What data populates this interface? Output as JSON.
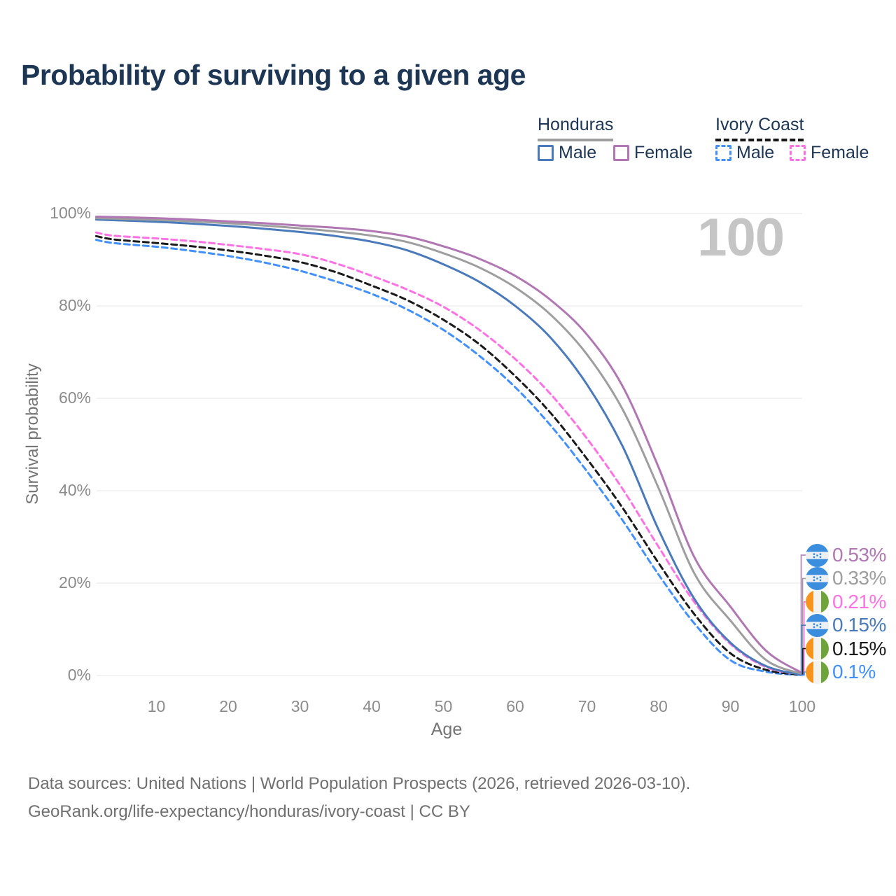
{
  "title": "Probability of surviving to a given age",
  "legend": {
    "honduras": {
      "name": "Honduras",
      "male": "Male",
      "female": "Female"
    },
    "ivory_coast": {
      "name": "Ivory Coast",
      "male": "Male",
      "female": "Female"
    }
  },
  "age_counter": "100",
  "y_axis": {
    "label": "Survival probability",
    "ticks": [
      "100%",
      "80%",
      "60%",
      "40%",
      "20%",
      "0%"
    ],
    "tick_values": [
      100,
      80,
      60,
      40,
      20,
      0
    ]
  },
  "x_axis": {
    "label": "Age",
    "ticks": [
      "10",
      "20",
      "30",
      "40",
      "50",
      "60",
      "70",
      "80",
      "90",
      "100"
    ],
    "tick_values": [
      10,
      20,
      30,
      40,
      50,
      60,
      70,
      80,
      90,
      100
    ]
  },
  "right_labels": [
    {
      "value": "0.53%",
      "series": "Honduras Female",
      "flag": "honduras",
      "color": "#b077b3",
      "end_value": 0.53
    },
    {
      "value": "0.33%",
      "series": "Honduras",
      "flag": "honduras",
      "color": "#9e9e9e",
      "end_value": 0.33
    },
    {
      "value": "0.21%",
      "series": "Ivory Coast Female",
      "flag": "ivory-coast",
      "color": "#ff72e3",
      "end_value": 0.21
    },
    {
      "value": "0.15%",
      "series": "Honduras Male",
      "flag": "honduras",
      "color": "#4a7ab9",
      "end_value": 0.15
    },
    {
      "value": "0.15%",
      "series": "Ivory Coast",
      "flag": "ivory-coast",
      "color": "#1a1a1a",
      "end_value": 0.15
    },
    {
      "value": "0.1%",
      "series": "Ivory Coast Male",
      "flag": "ivory-coast",
      "color": "#4290fe",
      "end_value": 0.1
    }
  ],
  "footer": {
    "line1": "Data sources: United Nations | World Population Prospects (2026, retrieved 2026-03-10).",
    "line2": "GeoRank.org/life-expectancy/honduras/ivory-coast | CC BY"
  },
  "colors": {
    "honduras_male": "#4a7ab9",
    "honduras_female": "#b077b3",
    "honduras_both": "#9e9e9e",
    "ivory_coast_male": "#4290fe",
    "ivory_coast_female": "#ff72e3",
    "ivory_coast_both": "#1a1a1a",
    "grid": "#eaeaea",
    "title_text": "#1c3654",
    "axis_text": "#8b8b8b",
    "big_number": "#c5c5c5"
  },
  "chart_data": {
    "type": "line",
    "title": "Probability of surviving to a given age",
    "xlabel": "Age",
    "ylabel": "Survival probability",
    "xlim": [
      0,
      100
    ],
    "ylim": [
      0,
      100
    ],
    "grid": "horizontal",
    "legend_position": "top-right",
    "series": [
      {
        "name": "Ivory Coast Male",
        "group": "Ivory Coast",
        "sex": "Male",
        "color": "#4290fe",
        "dash": true,
        "end_label": "0.1%",
        "points": [
          [
            1.6,
            94.3
          ],
          [
            4,
            93.6
          ],
          [
            10,
            92.8
          ],
          [
            15,
            91.9
          ],
          [
            20,
            90.8
          ],
          [
            25,
            89.4
          ],
          [
            30,
            87.6
          ],
          [
            35,
            85.3
          ],
          [
            40,
            82.6
          ],
          [
            45,
            79.2
          ],
          [
            50,
            74.8
          ],
          [
            55,
            69.2
          ],
          [
            60,
            62.4
          ],
          [
            65,
            54.0
          ],
          [
            70,
            44.2
          ],
          [
            75,
            33.5
          ],
          [
            80,
            21.8
          ],
          [
            85,
            11.2
          ],
          [
            90,
            3.3
          ],
          [
            95,
            0.8
          ],
          [
            100,
            0.1
          ]
        ]
      },
      {
        "name": "Ivory Coast",
        "group": "Ivory Coast",
        "sex": "Both",
        "color": "#1a1a1a",
        "dash": true,
        "end_label": "0.15%",
        "points": [
          [
            1.6,
            95.1
          ],
          [
            4,
            94.4
          ],
          [
            10,
            93.6
          ],
          [
            15,
            92.9
          ],
          [
            20,
            92.0
          ],
          [
            25,
            90.9
          ],
          [
            30,
            89.5
          ],
          [
            35,
            87.3
          ],
          [
            40,
            84.4
          ],
          [
            45,
            81.2
          ],
          [
            50,
            77.0
          ],
          [
            55,
            71.7
          ],
          [
            60,
            64.8
          ],
          [
            65,
            56.7
          ],
          [
            70,
            46.9
          ],
          [
            75,
            36.2
          ],
          [
            80,
            24.3
          ],
          [
            85,
            13.2
          ],
          [
            90,
            4.8
          ],
          [
            95,
            1.2
          ],
          [
            100,
            0.15
          ]
        ]
      },
      {
        "name": "Ivory Coast Female",
        "group": "Ivory Coast",
        "sex": "Female",
        "color": "#ff72e3",
        "dash": true,
        "end_label": "0.21%",
        "points": [
          [
            1.6,
            95.9
          ],
          [
            4,
            95.2
          ],
          [
            10,
            94.6
          ],
          [
            15,
            94.0
          ],
          [
            20,
            93.2
          ],
          [
            25,
            92.3
          ],
          [
            30,
            91.2
          ],
          [
            35,
            89.2
          ],
          [
            40,
            86.5
          ],
          [
            45,
            83.5
          ],
          [
            50,
            79.8
          ],
          [
            55,
            74.8
          ],
          [
            60,
            68.5
          ],
          [
            65,
            60.8
          ],
          [
            70,
            51.3
          ],
          [
            75,
            40.3
          ],
          [
            80,
            27.8
          ],
          [
            85,
            15.8
          ],
          [
            90,
            6.8
          ],
          [
            95,
            1.8
          ],
          [
            100,
            0.21
          ]
        ]
      },
      {
        "name": "Honduras Male",
        "group": "Honduras",
        "sex": "Male",
        "color": "#4a7ab9",
        "dash": false,
        "end_label": "0.15%",
        "points": [
          [
            1.6,
            98.7
          ],
          [
            5,
            98.5
          ],
          [
            10,
            98.2
          ],
          [
            15,
            97.8
          ],
          [
            20,
            97.3
          ],
          [
            25,
            96.7
          ],
          [
            30,
            96.0
          ],
          [
            35,
            95.1
          ],
          [
            40,
            93.9
          ],
          [
            45,
            92.0
          ],
          [
            50,
            89.0
          ],
          [
            55,
            85.2
          ],
          [
            60,
            80.0
          ],
          [
            65,
            73.0
          ],
          [
            70,
            63.0
          ],
          [
            75,
            49.5
          ],
          [
            80,
            31.5
          ],
          [
            85,
            16.5
          ],
          [
            90,
            7.1
          ],
          [
            95,
            2.0
          ],
          [
            100,
            0.15
          ]
        ]
      },
      {
        "name": "Honduras",
        "group": "Honduras",
        "sex": "Both",
        "color": "#9e9e9e",
        "dash": false,
        "end_label": "0.33%",
        "points": [
          [
            1.6,
            99.0
          ],
          [
            5,
            98.85
          ],
          [
            10,
            98.6
          ],
          [
            15,
            98.3
          ],
          [
            20,
            97.9
          ],
          [
            25,
            97.4
          ],
          [
            30,
            96.8
          ],
          [
            35,
            96.1
          ],
          [
            40,
            95.2
          ],
          [
            45,
            93.8
          ],
          [
            50,
            91.4
          ],
          [
            55,
            88.3
          ],
          [
            60,
            84.0
          ],
          [
            65,
            78.0
          ],
          [
            70,
            69.5
          ],
          [
            75,
            57.5
          ],
          [
            80,
            40.5
          ],
          [
            85,
            22.0
          ],
          [
            90,
            11.9
          ],
          [
            95,
            3.3
          ],
          [
            100,
            0.33
          ]
        ]
      },
      {
        "name": "Honduras Female",
        "group": "Honduras",
        "sex": "Female",
        "color": "#b077b3",
        "dash": false,
        "end_label": "0.53%",
        "points": [
          [
            1.6,
            99.3
          ],
          [
            5,
            99.2
          ],
          [
            10,
            99.0
          ],
          [
            15,
            98.7
          ],
          [
            20,
            98.3
          ],
          [
            25,
            97.9
          ],
          [
            30,
            97.4
          ],
          [
            35,
            96.9
          ],
          [
            40,
            96.2
          ],
          [
            45,
            95.0
          ],
          [
            50,
            92.9
          ],
          [
            55,
            90.2
          ],
          [
            60,
            86.5
          ],
          [
            65,
            81.2
          ],
          [
            70,
            73.8
          ],
          [
            75,
            62.5
          ],
          [
            80,
            45.0
          ],
          [
            85,
            25.5
          ],
          [
            90,
            14.9
          ],
          [
            95,
            5.3
          ],
          [
            100,
            0.53
          ]
        ]
      }
    ]
  }
}
